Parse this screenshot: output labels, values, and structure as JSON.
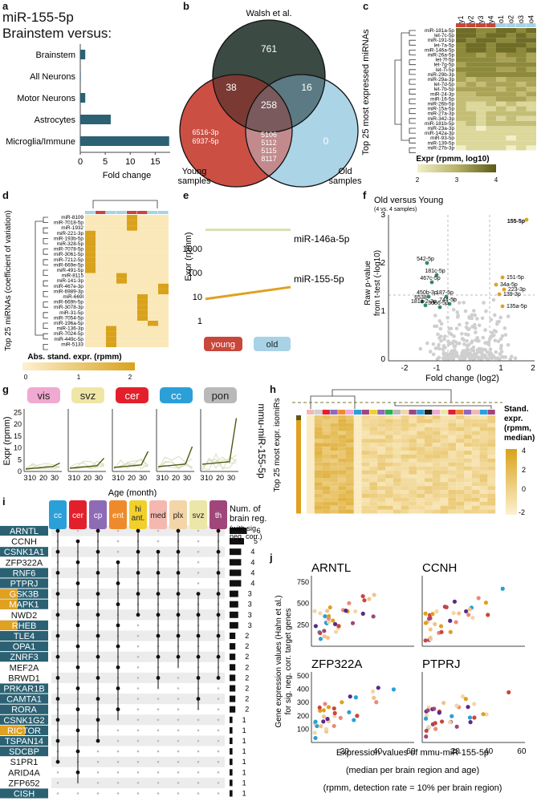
{
  "labels": {
    "a": "a",
    "b": "b",
    "c": "c",
    "d": "d",
    "e": "e",
    "f": "f",
    "g": "g",
    "h": "h",
    "i": "i",
    "j": "j"
  },
  "panel_a": {
    "title_line1": "miR-155-5p",
    "title_line2": "Brainstem versus:",
    "bar_color": "#2b6173"
  },
  "panel_b": {
    "title": "Walsh et al.",
    "left_label_1": "Young",
    "left_label_2": "samples",
    "right_label_1": "Old",
    "right_label_2": "samples",
    "n_top": "761",
    "n_top_left": "38",
    "n_top_right": "16",
    "n_center": "258",
    "n_right": "0",
    "left_only_1": "6516-3p",
    "left_only_2": "6937-5p",
    "bottom_1": "5106",
    "bottom_2": "5112",
    "bottom_3": "5115",
    "bottom_4": "8117",
    "colors": {
      "top": "#3c4a44",
      "left": "#c9463a",
      "right": "#a8d2e6"
    }
  },
  "panel_c": {
    "ylabel": "Top 25 most expressed miRNAs",
    "columns": [
      "y1",
      "y2",
      "y3",
      "y4",
      "o1",
      "o2",
      "o3",
      "o4"
    ],
    "rows": [
      "miR-181a-5p",
      "let-7c-5p",
      "miR-191-5p",
      "let-7a-5p",
      "miR-146a-5p",
      "miR-26a-5p",
      "let-7f-5p",
      "let-7g-5p",
      "let-7i-5p",
      "miR-29b-3p",
      "miR-29a-3p",
      "let-7d-5p",
      "let-7b-5p",
      "miR-24-3p",
      "miR-16-5p",
      "miR-26b-5p",
      "miR-15a-5p",
      "miR-27a-3p",
      "miR-342-3p",
      "miR-181b-5p",
      "miR-23a-3p",
      "miR-142a-3p",
      "miR-93-5p",
      "miR-139-5p",
      "miR-27b-3p"
    ],
    "legend_title": "Expr (rpmm, log10)",
    "legend_ticks": [
      "2",
      "3",
      "4"
    ]
  },
  "panel_d": {
    "ylabel": "Top 25 miRNAs (coefficient of variation)",
    "rows": [
      "miR-8109",
      "miR-7018-5p",
      "miR-1932",
      "miR-221-3p",
      "miR-193b-5p",
      "miR-328-5p",
      "miR-7078-5p",
      "miR-3061-5p",
      "miR-7212-5p",
      "miR-669e-5p",
      "miR-491-5p",
      "miR-8115",
      "miR-141-3p",
      "miR-467e-3p",
      "miR-6989-3p",
      "miR-669l",
      "miR-669h-5p",
      "miR-3078-3p",
      "miR-31-5p",
      "miR-7054-5p",
      "miR-196a-5p",
      "miR-136-3p",
      "miR-7024-5p",
      "miR-449c-5p",
      "miR-5133"
    ],
    "legend_title": "Abs. stand. expr. (rpmm)",
    "legend_ticks": [
      "0",
      "1",
      "2"
    ]
  },
  "panel_e": {
    "ylabel": "Expr (rpmm)",
    "yticks": [
      "1",
      "10",
      "100",
      "1000"
    ],
    "line1_label": "miR-146a-5p",
    "line2_label": "miR-155-5p",
    "young_label": "young",
    "old_label": "old"
  },
  "panel_f": {
    "title": "Old versus Young",
    "subtitle": "(4 vs. 4 samples)",
    "ylabel_1": "Raw p-value",
    "ylabel_2": "from t-test (-log10)",
    "xlabel": "Fold change (log2)",
    "xticks": [
      "-2",
      "-1",
      "0",
      "1",
      "2"
    ],
    "yticks": [
      "0",
      "1",
      "2",
      "3"
    ]
  },
  "panel_g": {
    "regions": [
      "vis",
      "svz",
      "cer",
      "cc",
      "pon"
    ],
    "region_colors": [
      "#f0a9d0",
      "#efe6a6",
      "#e2202b",
      "#2b9fd8",
      "#b9b9b9"
    ],
    "ylabel": "Expr (rpmm)",
    "yticks": [
      "0",
      "5",
      "10",
      "15",
      "20",
      "25"
    ],
    "xticks": [
      "3",
      "10",
      "20",
      "30"
    ],
    "xlabel": "Age (month)",
    "side_label": "mmu-miR-155-5p"
  },
  "panel_h": {
    "ylabel": "Top 25 most expr. isomiRs",
    "legend_title_1": "Stand.",
    "legend_title_2": "expr.",
    "legend_title_3": "(rpmm,",
    "legend_title_4": "median)",
    "legend_ticks": [
      "4",
      "2",
      "0",
      "-2"
    ]
  },
  "panel_i": {
    "columns": [
      "cc",
      "cer",
      "cp",
      "ent",
      "hi ant.",
      "med",
      "plx",
      "svz",
      "th"
    ],
    "column_colors": [
      "#2b9fd8",
      "#e2202b",
      "#8e6bb5",
      "#ef8a2b",
      "#f2d02b",
      "#f4b8b0",
      "#f3d5a8",
      "#ece6a8",
      "#a0467a"
    ],
    "side_title_1": "Num. of",
    "side_title_2": "brain reg.",
    "side_title_3": "(with sig.",
    "side_title_4": "neg. corr.)",
    "genes": [
      {
        "name": "ARNTL",
        "count": "6"
      },
      {
        "name": "CCNH",
        "count": "5"
      },
      {
        "name": "CSNK1A1",
        "count": "4"
      },
      {
        "name": "ZFP322A",
        "count": "4"
      },
      {
        "name": "RNF6",
        "count": "4"
      },
      {
        "name": "PTPRJ",
        "count": "4"
      },
      {
        "name": "GSK3B",
        "count": "3"
      },
      {
        "name": "MAPK1",
        "count": "3"
      },
      {
        "name": "NWD2",
        "count": "3"
      },
      {
        "name": "RHEB",
        "count": "3"
      },
      {
        "name": "TLE4",
        "count": "2"
      },
      {
        "name": "OPA1",
        "count": "2"
      },
      {
        "name": "ZNRF3",
        "count": "2"
      },
      {
        "name": "MEF2A",
        "count": "2"
      },
      {
        "name": "BRWD1",
        "count": "2"
      },
      {
        "name": "PRKAR1B",
        "count": "2"
      },
      {
        "name": "CAMTA1",
        "count": "2"
      },
      {
        "name": "RORA",
        "count": "2"
      },
      {
        "name": "CSNK1G2",
        "count": "1"
      },
      {
        "name": "RICTOR",
        "count": "1"
      },
      {
        "name": "TSPAN14",
        "count": "1"
      },
      {
        "name": "SDCBP",
        "count": "1"
      },
      {
        "name": "S1PR1",
        "count": "1"
      },
      {
        "name": "ARID4A",
        "count": "1"
      },
      {
        "name": "ZFP652",
        "count": "1"
      },
      {
        "name": "CISH",
        "count": "1"
      }
    ]
  },
  "panel_j": {
    "ylabel_1": "Gene expression values (Hahn et al.)",
    "ylabel_2": "for sig. neg. corr. target genes",
    "xlabel_1": "Expression values of mmu-miR-155-5p",
    "xlabel_2": "(median per brain region and age)",
    "xlabel_3": "(rpmm, detection rate = 10% per brain region)",
    "yticks_top": [
      "250",
      "500",
      "750"
    ],
    "yticks_bottom": [
      "100",
      "200",
      "300",
      "400",
      "500"
    ],
    "xticks": [
      "20",
      "40",
      "60"
    ]
  },
  "chart_data": [
    {
      "type": "bar",
      "panel": "a",
      "orientation": "horizontal",
      "categories": [
        "Brainstem",
        "All Neurons",
        "Motor Neurons",
        "Astrocytes",
        "Microglia/Immune"
      ],
      "values": [
        1.0,
        0.1,
        1.0,
        6.1,
        17.8
      ],
      "xlabel": "Fold change",
      "xticks": [
        "0",
        "5",
        "10",
        "15"
      ],
      "xlim": [
        0,
        18
      ]
    },
    {
      "type": "line",
      "panel": "e",
      "categories": [
        "young",
        "old"
      ],
      "series": [
        {
          "name": "miR-146a-5p",
          "values": [
            6000,
            6000
          ],
          "color": "#d8e0b0"
        },
        {
          "name": "miR-155-5p",
          "values": [
            8,
            25
          ],
          "color": "#e0a020"
        }
      ],
      "ylabel": "Expr (rpmm)",
      "yscale": "log"
    }
  ]
}
